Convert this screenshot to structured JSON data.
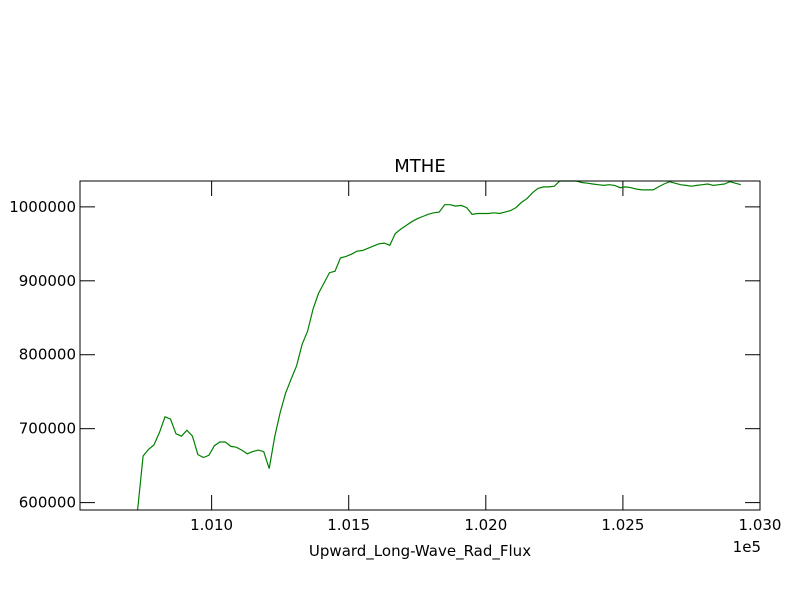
{
  "chart_data": {
    "type": "line",
    "title": "MTHE",
    "xlabel": "Upward_Long-Wave_Rad_Flux",
    "ylabel": "",
    "x_offset_label": "1e5",
    "xlim": [
      1.0052,
      1.03
    ],
    "ylim": [
      590000,
      1035000
    ],
    "x_ticks": [
      1.01,
      1.015,
      1.02,
      1.025,
      1.03
    ],
    "x_tick_labels": [
      "1.010",
      "1.015",
      "1.020",
      "1.025",
      "1.030"
    ],
    "y_ticks": [
      600000,
      700000,
      800000,
      900000,
      1000000
    ],
    "y_tick_labels": [
      "600000",
      "700000",
      "800000",
      "900000",
      "1000000"
    ],
    "grid": false,
    "line_color": "#008000",
    "series": [
      {
        "x": [
          1.0073,
          1.0075,
          1.0077,
          1.0079,
          1.0081,
          1.0083,
          1.0085,
          1.0087,
          1.0089,
          1.0091,
          1.0093,
          1.0095,
          1.0097,
          1.0099,
          1.0101,
          1.0103,
          1.0105,
          1.0107,
          1.0109,
          1.0111,
          1.0113,
          1.0115,
          1.0117,
          1.0119,
          1.0121,
          1.0123,
          1.0125,
          1.0127,
          1.0129,
          1.0131,
          1.0133,
          1.0135,
          1.0137,
          1.0139,
          1.0141,
          1.0143,
          1.0145,
          1.0147,
          1.0149,
          1.0151,
          1.0153,
          1.0155,
          1.0157,
          1.0159,
          1.0161,
          1.0163,
          1.0165,
          1.0167,
          1.0169,
          1.0171,
          1.0173,
          1.0175,
          1.0177,
          1.0179,
          1.0181,
          1.0183,
          1.0185,
          1.0187,
          1.0189,
          1.0191,
          1.0193,
          1.0195,
          1.0197,
          1.0199,
          1.0201,
          1.0203,
          1.0205,
          1.0207,
          1.0209,
          1.0211,
          1.0213,
          1.0215,
          1.0217,
          1.0219,
          1.0221,
          1.0223,
          1.0225,
          1.0227,
          1.0229,
          1.0231,
          1.0233,
          1.0235,
          1.0237,
          1.0239,
          1.0241,
          1.0243,
          1.0245,
          1.0247,
          1.0249,
          1.0251,
          1.0253,
          1.0255,
          1.0257,
          1.0259,
          1.0261,
          1.0263,
          1.0265,
          1.0267,
          1.0269,
          1.0271,
          1.0273,
          1.0275,
          1.0277,
          1.0279,
          1.0281,
          1.0283,
          1.0285,
          1.0287,
          1.0289,
          1.0291,
          1.0293
        ],
        "y": [
          590000,
          663000,
          672000,
          678000,
          695000,
          716000,
          713000,
          693000,
          690000,
          698000,
          690000,
          665000,
          661000,
          664000,
          677000,
          682000,
          682000,
          676000,
          675000,
          671000,
          666000,
          669000,
          671000,
          669000,
          646000,
          689000,
          722000,
          748000,
          767000,
          785000,
          814000,
          832000,
          862000,
          883000,
          897000,
          911000,
          913000,
          931000,
          933000,
          936000,
          940000,
          941000,
          944000,
          947000,
          950000,
          951000,
          948000,
          964000,
          970000,
          975000,
          980000,
          984000,
          987000,
          990000,
          992000,
          993000,
          1003000,
          1003000,
          1001000,
          1002000,
          999000,
          990000,
          991000,
          991000,
          991000,
          992000,
          991000,
          993000,
          995000,
          999000,
          1006000,
          1011000,
          1019000,
          1025000,
          1027000,
          1027000,
          1028000,
          1035000,
          1035000,
          1036000,
          1036000,
          1033000,
          1032000,
          1031000,
          1030000,
          1029000,
          1030000,
          1029000,
          1026000,
          1027000,
          1026000,
          1024000,
          1023000,
          1023000,
          1023000,
          1027000,
          1031000,
          1034000,
          1032000,
          1030000,
          1029000,
          1028000,
          1029000,
          1030000,
          1031000,
          1029000,
          1030000,
          1031000,
          1034000,
          1032000,
          1030000
        ]
      }
    ]
  }
}
